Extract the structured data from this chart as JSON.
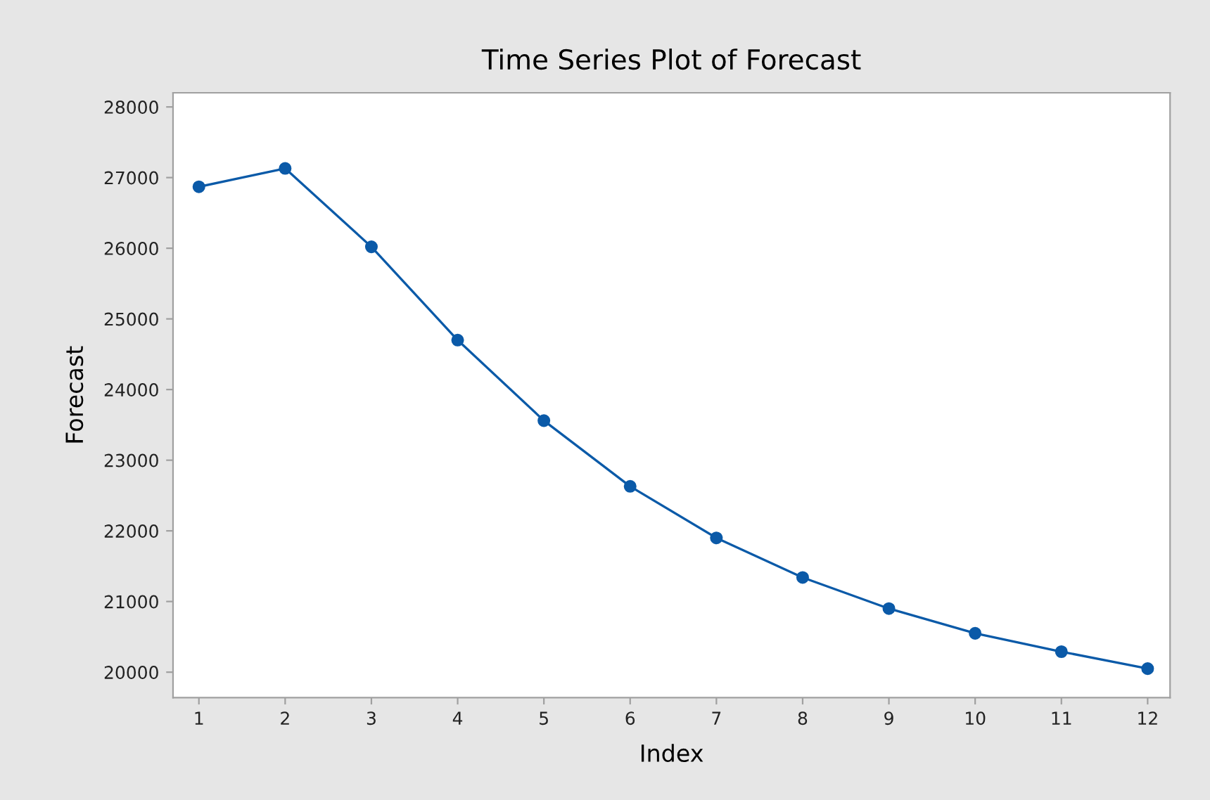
{
  "chart_data": {
    "type": "line",
    "title": "Time Series Plot of Forecast",
    "xlabel": "Index",
    "ylabel": "Forecast",
    "x": [
      1,
      2,
      3,
      4,
      5,
      6,
      7,
      8,
      9,
      10,
      11,
      12
    ],
    "series": [
      {
        "color": "#0b5aa8",
        "values": [
          26870,
          27130,
          26020,
          24700,
          23560,
          22630,
          21900,
          21340,
          20900,
          20550,
          20290,
          20050
        ]
      }
    ],
    "xlim": [
      0.7,
      12.26
    ],
    "xticks": [
      1,
      2,
      3,
      4,
      5,
      6,
      7,
      8,
      9,
      10,
      11,
      12
    ],
    "ylim": [
      19640,
      28200
    ],
    "yticks": [
      20000,
      21000,
      22000,
      23000,
      24000,
      25000,
      26000,
      27000,
      28000
    ],
    "marker": "circle",
    "line_style": "solid",
    "grid": false,
    "legend": false
  }
}
